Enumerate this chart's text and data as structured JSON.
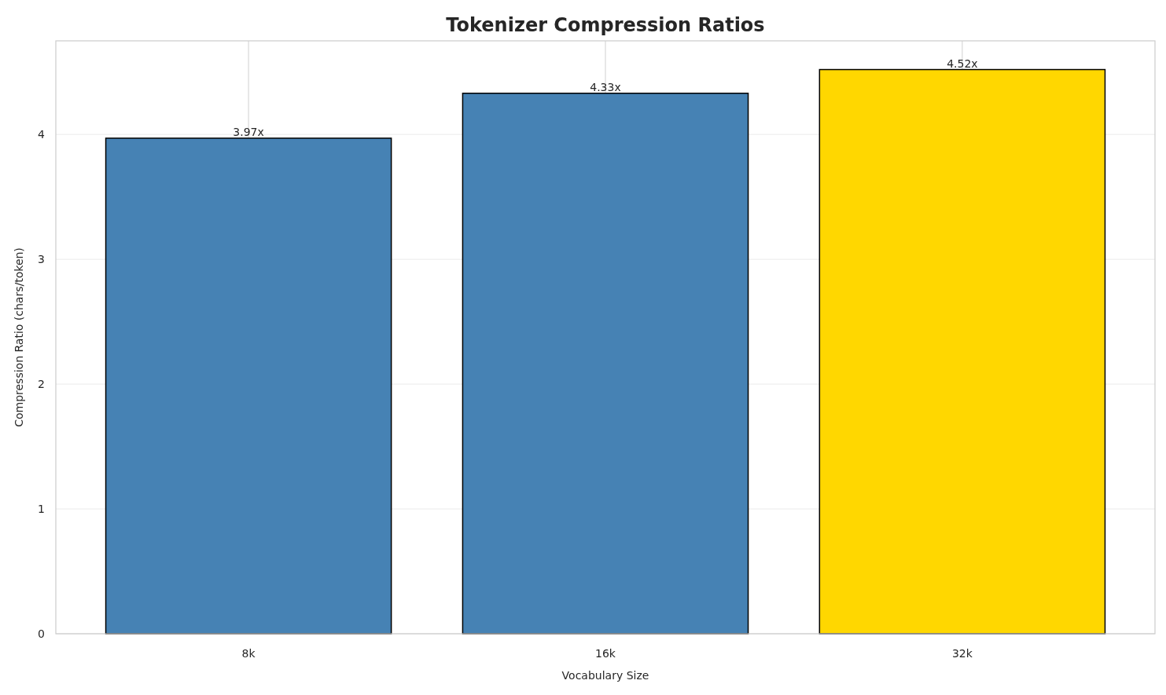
{
  "chart_data": {
    "type": "bar",
    "title": "Tokenizer Compression Ratios",
    "xlabel": "Vocabulary Size",
    "ylabel": "Compression Ratio (chars/token)",
    "categories": [
      "8k",
      "16k",
      "32k"
    ],
    "values": [
      3.97,
      4.33,
      4.52
    ],
    "colors": [
      "#4682b4",
      "#4682b4",
      "#ffd700"
    ],
    "value_labels": [
      "3.97x",
      "4.33x",
      "4.52x"
    ],
    "ylim": [
      0,
      4.75
    ],
    "yticks": [
      0,
      1,
      2,
      3,
      4
    ],
    "grid": true
  }
}
